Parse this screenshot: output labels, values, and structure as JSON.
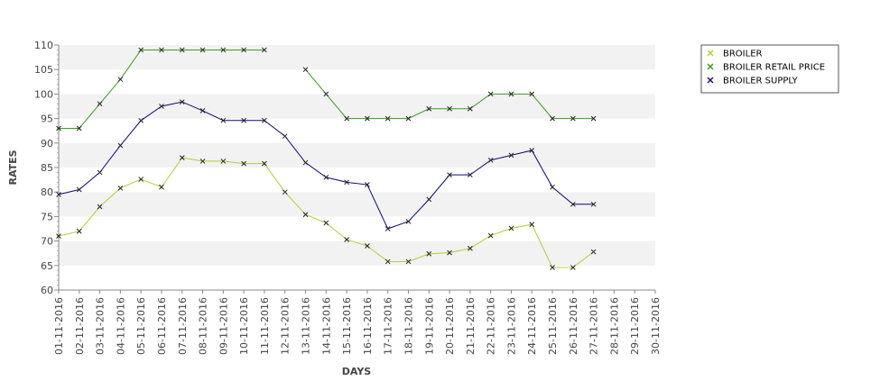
{
  "chart_data": {
    "type": "line",
    "title": "",
    "xlabel": "DAYS",
    "ylabel": "RATES",
    "ylim": [
      60,
      110
    ],
    "yticks": [
      60,
      65,
      70,
      75,
      80,
      85,
      90,
      95,
      100,
      105,
      110
    ],
    "grid": "alternating horizontal bands",
    "legend_position": "top-right",
    "categories": [
      "01-11-2016",
      "02-11-2016",
      "03-11-2016",
      "04-11-2016",
      "05-11-2016",
      "06-11-2016",
      "07-11-2016",
      "08-11-2016",
      "09-11-2016",
      "10-11-2016",
      "11-11-2016",
      "12-11-2016",
      "13-11-2016",
      "14-11-2016",
      "15-11-2016",
      "16-11-2016",
      "17-11-2016",
      "18-11-2016",
      "19-11-2016",
      "20-11-2016",
      "21-11-2016",
      "22-11-2016",
      "23-11-2016",
      "24-11-2016",
      "25-11-2016",
      "26-11-2016",
      "27-11-2016",
      "28-11-2016",
      "29-11-2016",
      "30-11-2016"
    ],
    "series": [
      {
        "name": "BROILER",
        "color": "#b5cc3a",
        "values": [
          71,
          72,
          77,
          80.8,
          82.6,
          81,
          87,
          86.3,
          86.3,
          85.8,
          85.8,
          80,
          75.4,
          73.7,
          70.3,
          69,
          65.8,
          65.8,
          67.4,
          67.6,
          68.5,
          71.1,
          72.6,
          73.4,
          64.6,
          64.6,
          67.8,
          null,
          null,
          null
        ]
      },
      {
        "name": "BROILER RETAIL PRICE",
        "color": "#3c9a1e",
        "values": [
          93,
          93,
          98,
          103,
          109,
          109,
          109,
          109,
          109,
          109,
          109,
          null,
          105,
          100,
          95,
          95,
          95,
          95,
          97,
          97,
          97,
          100,
          100,
          100,
          95,
          95,
          95,
          null,
          null,
          null
        ]
      },
      {
        "name": "BROILER SUPPLY",
        "color": "#0a0a78",
        "values": [
          79.5,
          80.5,
          84,
          89.5,
          94.6,
          97.5,
          98.4,
          96.6,
          94.6,
          94.6,
          94.6,
          91.4,
          86,
          83,
          82,
          81.5,
          72.5,
          74,
          78.5,
          83.5,
          83.5,
          86.5,
          87.5,
          88.5,
          81,
          77.5,
          77.5,
          null,
          null,
          null
        ]
      }
    ]
  }
}
